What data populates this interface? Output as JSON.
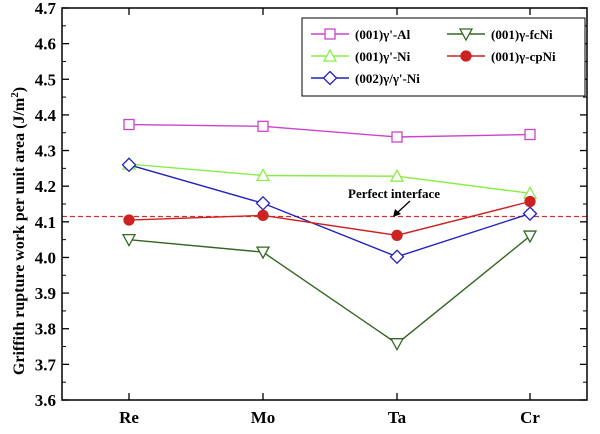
{
  "chart_data": {
    "type": "line",
    "categories": [
      "Re",
      "Mo",
      "Ta",
      "Cr"
    ],
    "ylabel": "Griffith rupture work per unit area (J/m",
    "ylabel_sup": "2",
    "ylabel_close": ")",
    "ylim": [
      3.6,
      4.7
    ],
    "yticks": [
      "3.6",
      "3.7",
      "3.8",
      "3.9",
      "4.0",
      "4.1",
      "4.2",
      "4.3",
      "4.4",
      "4.5",
      "4.6",
      "4.7"
    ],
    "grid": false,
    "legend_position": "top-right",
    "reference_line": {
      "label": "Perfect interface",
      "value": 4.115,
      "color": "#cc3333"
    },
    "series": [
      {
        "name": "(001)γ'-Al",
        "values": [
          4.373,
          4.368,
          4.338,
          4.345
        ],
        "color": "#cc44cc",
        "marker": "square",
        "filled": false
      },
      {
        "name": "(001)γ'-Ni",
        "values": [
          4.262,
          4.23,
          4.228,
          4.18
        ],
        "color": "#88ee44",
        "marker": "triangle-up",
        "filled": false
      },
      {
        "name": "(002)γ/γ'-Ni",
        "values": [
          4.26,
          4.152,
          4.002,
          4.123
        ],
        "color": "#2222bb",
        "marker": "diamond",
        "filled": false
      },
      {
        "name": "(001)γ-fcNi",
        "values": [
          4.05,
          4.015,
          3.758,
          4.06
        ],
        "color": "#336622",
        "marker": "triangle-down",
        "filled": false
      },
      {
        "name": "(001)γ-cpNi",
        "values": [
          4.105,
          4.118,
          4.062,
          4.157
        ],
        "color": "#cc2222",
        "marker": "circle",
        "filled": true
      }
    ]
  }
}
